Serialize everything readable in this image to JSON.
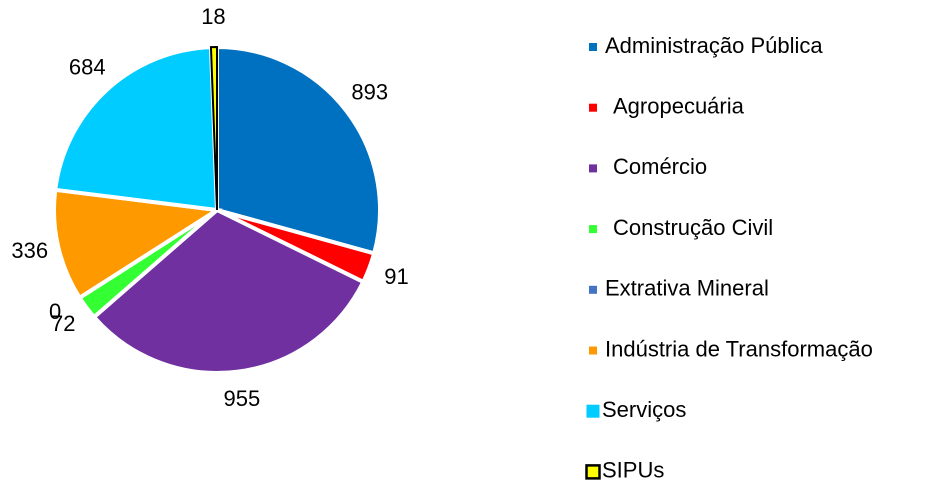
{
  "chart_data": {
    "type": "pie",
    "categories": [
      "Administração Pública",
      "Agropecuária",
      "Comércio",
      "Construção Civil",
      "Extrativa Mineral",
      "Indústria de Transformação",
      "Serviços",
      "SIPUs"
    ],
    "values": [
      893,
      91,
      955,
      72,
      0,
      336,
      684,
      18
    ],
    "colors": [
      "#0070C0",
      "#FF0000",
      "#7030A0",
      "#33FF33",
      "#4472C4",
      "#FF9900",
      "#00CCFF",
      "#FFFF00"
    ],
    "edgecolors": [
      "#FFFFFF",
      "#FFFFFF",
      "#FFFFFF",
      "#FFFFFF",
      "#FFFFFF",
      "#FFFFFF",
      "#FFFFFF",
      "#000000"
    ],
    "legend": "right"
  }
}
